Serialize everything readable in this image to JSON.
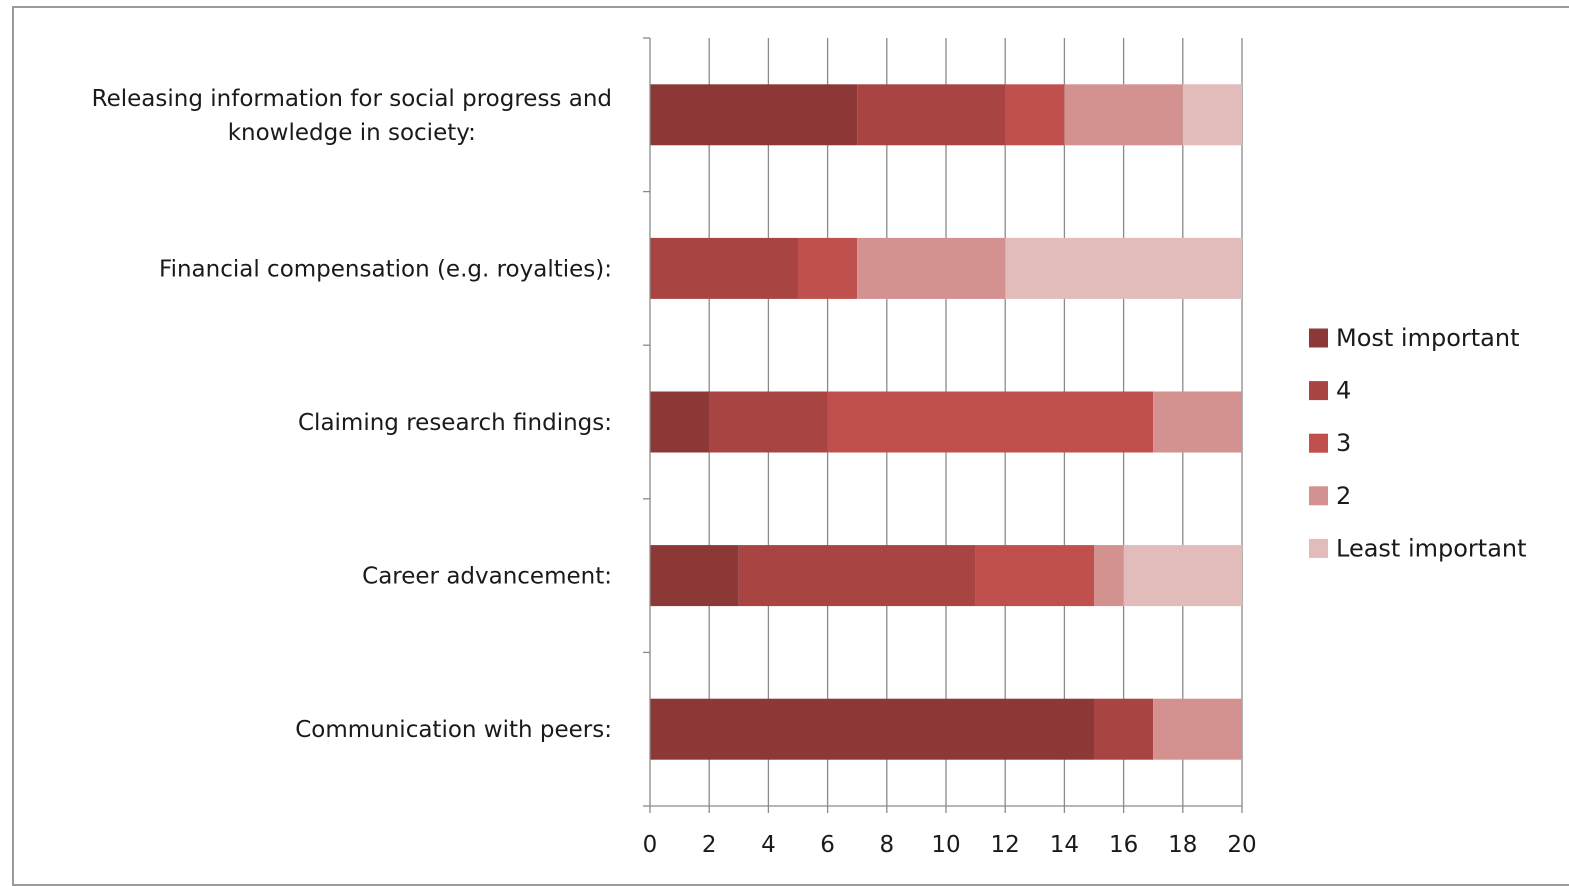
{
  "chart_data": {
    "type": "bar",
    "orientation": "horizontal",
    "stacked": true,
    "categories": [
      [
        "Releasing information for social progress and",
        "knowledge in society:"
      ],
      [
        "Financial compensation (e.g. royalties):"
      ],
      [
        "Claiming research findings:"
      ],
      [
        "Career advancement:"
      ],
      [
        "Communication with peers:"
      ]
    ],
    "series": [
      {
        "name": "Most important",
        "color": "#8c3836",
        "values": [
          7,
          0,
          2,
          3,
          15
        ]
      },
      {
        "name": "4",
        "color": "#a84543",
        "values": [
          5,
          5,
          4,
          8,
          2
        ]
      },
      {
        "name": "3",
        "color": "#c0504d",
        "values": [
          2,
          2,
          11,
          4,
          0
        ]
      },
      {
        "name": "2",
        "color": "#d39190",
        "values": [
          4,
          5,
          3,
          1,
          3
        ]
      },
      {
        "name": "Least important",
        "color": "#e2bcbb",
        "values": [
          2,
          8,
          0,
          4,
          0
        ]
      }
    ],
    "xlim": [
      0,
      20
    ],
    "xticks": [
      "0",
      "2",
      "4",
      "6",
      "8",
      "10",
      "12",
      "14",
      "16",
      "18",
      "20"
    ],
    "grid": "vertical",
    "legend_position": "right",
    "title": "",
    "xlabel": "",
    "ylabel": ""
  }
}
